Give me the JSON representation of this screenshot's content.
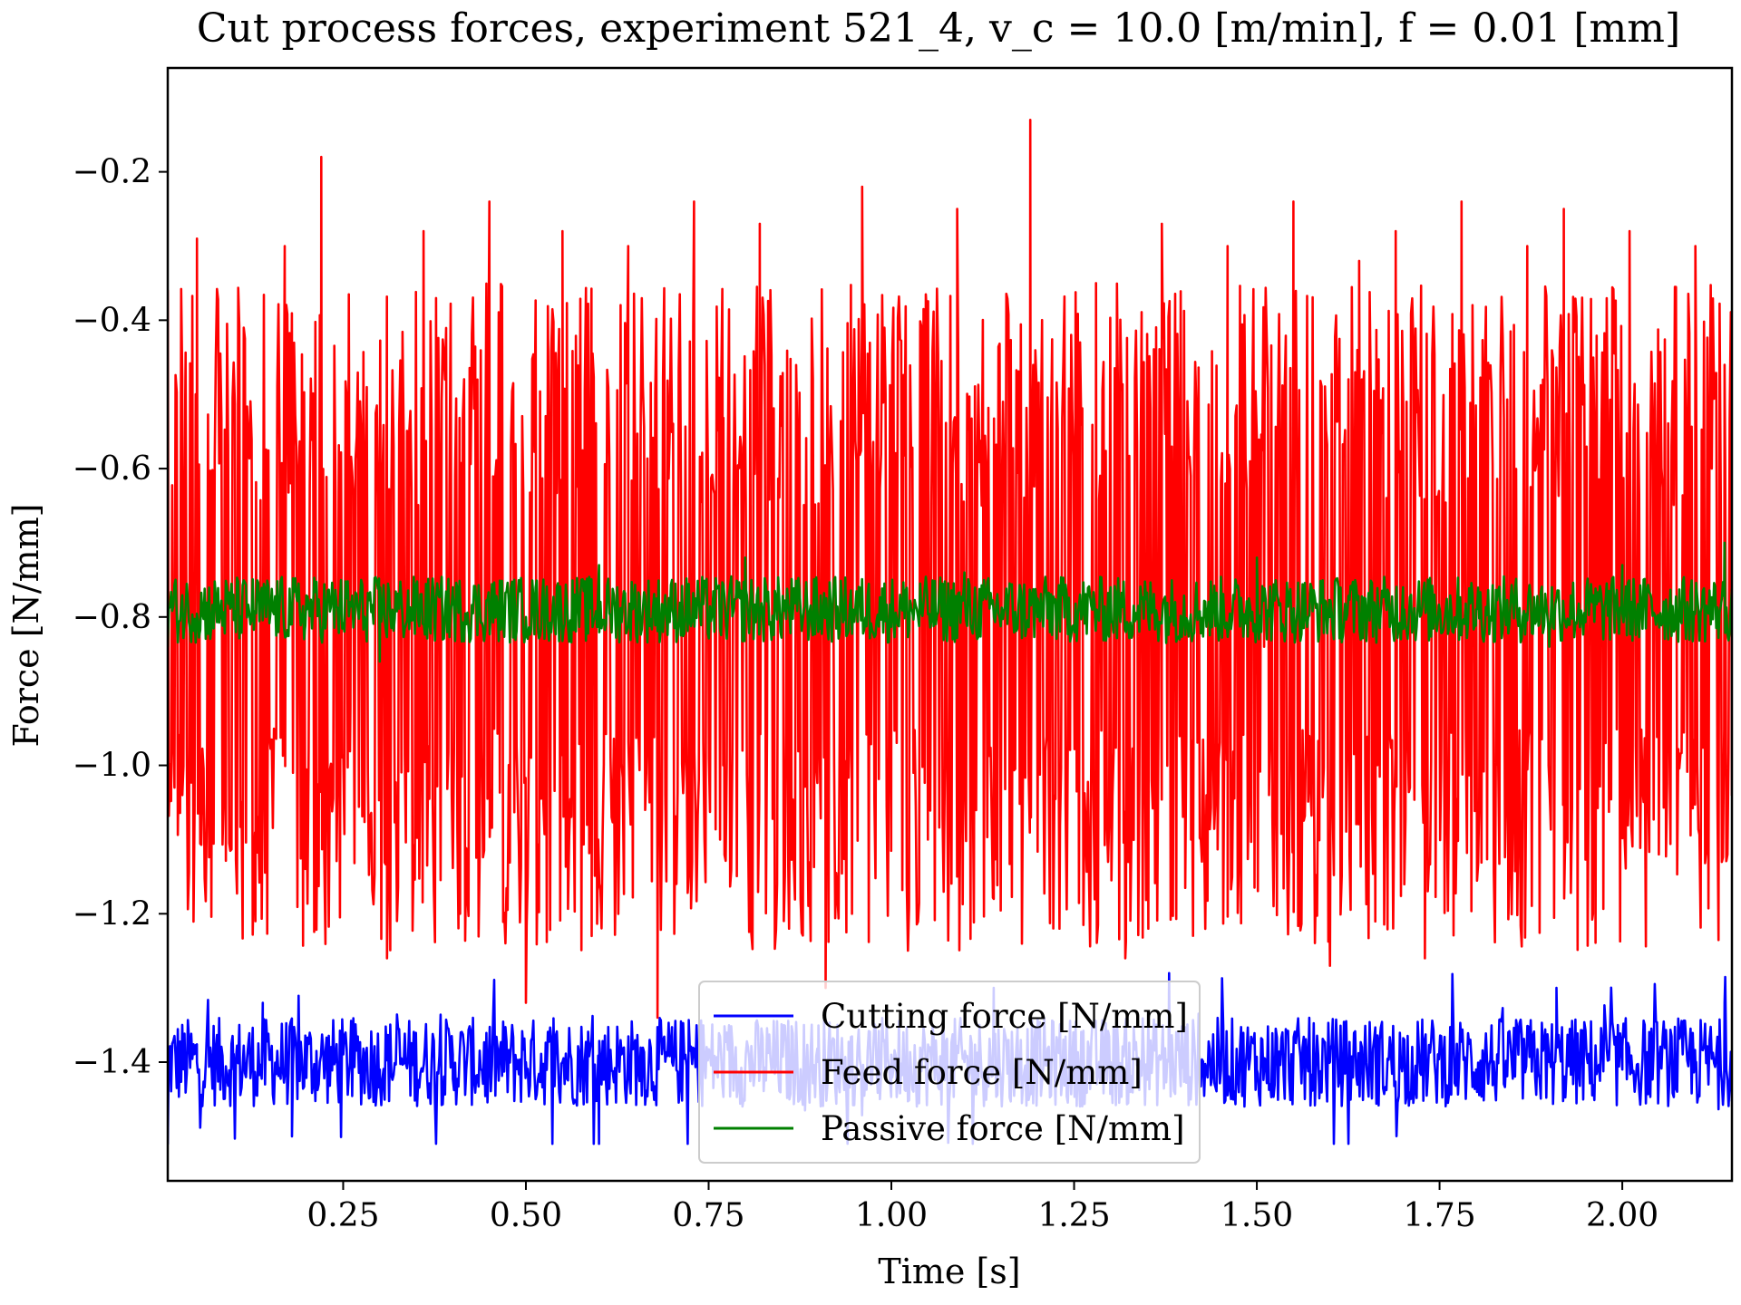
{
  "chart_data": {
    "type": "line",
    "title": "Cut process forces, experiment 521_4, v_c = 10.0 [m/min], f = 0.01 [mm]",
    "xlabel": "Time [s]",
    "ylabel": "Force [N/mm]",
    "xlim": [
      0.01,
      2.15
    ],
    "ylim": [
      -1.56,
      -0.06
    ],
    "xticks": [
      0.25,
      0.5,
      0.75,
      1.0,
      1.25,
      1.5,
      1.75,
      2.0
    ],
    "xtick_labels": [
      "0.25",
      "0.50",
      "0.75",
      "1.00",
      "1.25",
      "1.50",
      "1.75",
      "2.00"
    ],
    "yticks": [
      -0.2,
      -0.4,
      -0.6,
      -0.8,
      -1.0,
      -1.2,
      -1.4
    ],
    "ytick_labels": [
      "−0.2",
      "−0.4",
      "−0.6",
      "−0.8",
      "−1.0",
      "−1.2",
      "−1.4"
    ],
    "grid": false,
    "legend_position": "bottom-center",
    "series": [
      {
        "name": "Cutting force [N/mm]",
        "color": "#0000ff",
        "summary": {
          "mean": -1.4,
          "min": -1.51,
          "max": -1.28
        },
        "x": [
          0.01,
          0.05,
          0.1,
          0.14,
          0.18,
          0.2,
          0.3,
          0.4,
          0.5,
          0.6,
          0.7,
          0.8,
          0.9,
          1.0,
          1.1,
          1.14,
          1.2,
          1.3,
          1.38,
          1.4,
          1.5,
          1.6,
          1.7,
          1.8,
          1.9,
          1.91,
          2.0,
          2.1,
          2.14
        ],
        "values": [
          -1.51,
          -1.4,
          -1.41,
          -1.32,
          -1.5,
          -1.4,
          -1.41,
          -1.39,
          -1.4,
          -1.51,
          -1.4,
          -1.41,
          -1.4,
          -1.39,
          -1.4,
          -1.3,
          -1.41,
          -1.4,
          -1.28,
          -1.4,
          -1.41,
          -1.4,
          -1.4,
          -1.41,
          -1.4,
          -1.3,
          -1.41,
          -1.4,
          -1.32
        ]
      },
      {
        "name": "Feed force [N/mm]",
        "color": "#ff0000",
        "summary": {
          "mean": -0.8,
          "min": -1.34,
          "max": -0.13
        },
        "x": [
          0.01,
          0.03,
          0.05,
          0.09,
          0.13,
          0.17,
          0.22,
          0.26,
          0.31,
          0.36,
          0.41,
          0.45,
          0.5,
          0.55,
          0.59,
          0.64,
          0.68,
          0.73,
          0.77,
          0.82,
          0.86,
          0.91,
          0.96,
          1.0,
          1.05,
          1.09,
          1.14,
          1.19,
          1.23,
          1.28,
          1.32,
          1.37,
          1.41,
          1.46,
          1.51,
          1.55,
          1.6,
          1.64,
          1.69,
          1.73,
          1.78,
          1.83,
          1.87,
          1.92,
          1.96,
          2.01,
          2.05,
          2.1,
          2.14
        ],
        "values": [
          -0.36,
          -1.04,
          -0.29,
          -0.78,
          -1.21,
          -0.3,
          -0.18,
          -0.92,
          -1.26,
          -0.28,
          -1.2,
          -0.24,
          -1.32,
          -0.28,
          -1.23,
          -0.3,
          -1.34,
          -0.24,
          -1.0,
          -0.27,
          -1.22,
          -1.3,
          -0.22,
          -0.84,
          -1.1,
          -0.25,
          -1.18,
          -0.13,
          -1.22,
          -0.35,
          -1.26,
          -0.27,
          -1.1,
          -0.3,
          -0.84,
          -0.24,
          -1.27,
          -0.32,
          -0.28,
          -1.26,
          -0.24,
          -1.0,
          -0.3,
          -0.25,
          -1.2,
          -0.28,
          -1.12,
          -0.3,
          -0.46
        ]
      },
      {
        "name": "Passive force [N/mm]",
        "color": "#008000",
        "summary": {
          "mean": -0.79,
          "min": -0.87,
          "max": -0.7
        },
        "x": [
          0.01,
          0.1,
          0.2,
          0.3,
          0.4,
          0.5,
          0.6,
          0.7,
          0.8,
          0.9,
          1.0,
          1.1,
          1.2,
          1.3,
          1.4,
          1.5,
          1.6,
          1.7,
          1.8,
          1.9,
          2.0,
          2.1,
          2.14
        ],
        "values": [
          -0.84,
          -0.77,
          -0.79,
          -0.86,
          -0.76,
          -0.8,
          -0.73,
          -0.79,
          -0.72,
          -0.82,
          -0.79,
          -0.74,
          -0.8,
          -0.76,
          -0.79,
          -0.72,
          -0.8,
          -0.76,
          -0.79,
          -0.84,
          -0.73,
          -0.79,
          -0.7
        ]
      }
    ]
  }
}
